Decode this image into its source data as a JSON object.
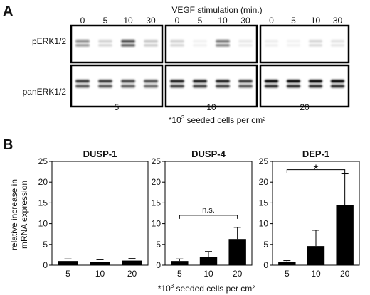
{
  "panel_a": {
    "letter": "A",
    "header": "VEGF stimulation (min.)",
    "time_labels": [
      "0",
      "5",
      "10",
      "30"
    ],
    "row_labels": [
      "pERK1/2",
      "panERK1/2"
    ],
    "density_labels": [
      "5",
      "10",
      "20"
    ],
    "footer_prefix": "*10",
    "footer_sup": "3",
    "footer_suffix": " seeded cells per cm²",
    "blot": {
      "pERK": [
        [
          0.55,
          0.2,
          0.85,
          0.25
        ],
        [
          0.2,
          0.05,
          0.65,
          0.1
        ],
        [
          0.08,
          0.03,
          0.18,
          0.12
        ]
      ],
      "panERK": [
        [
          0.8,
          0.8,
          0.75,
          0.7
        ],
        [
          0.9,
          0.9,
          0.9,
          0.8
        ],
        [
          1.0,
          1.0,
          1.0,
          1.0
        ]
      ]
    }
  },
  "panel_b": {
    "letter": "B",
    "ylabel_line1": "relative increase in",
    "ylabel_line2": "mRNA expression",
    "footer_prefix": "*10",
    "footer_sup": "3",
    "footer_suffix": " seeded cells per cm²"
  },
  "chart_data": [
    {
      "type": "bar",
      "title": "DUSP-1",
      "categories": [
        "5",
        "10",
        "20"
      ],
      "values": [
        1.0,
        0.8,
        1.1
      ],
      "errors": [
        0.5,
        0.5,
        0.5
      ],
      "ylim": [
        0,
        25
      ],
      "yticks": [
        0,
        5,
        10,
        15,
        20,
        25
      ],
      "annotation": null
    },
    {
      "type": "bar",
      "title": "DUSP-4",
      "categories": [
        "5",
        "10",
        "20"
      ],
      "values": [
        1.0,
        2.0,
        6.3
      ],
      "errors": [
        0.5,
        1.3,
        2.8
      ],
      "ylim": [
        0,
        25
      ],
      "yticks": [
        0,
        5,
        10,
        15,
        20,
        25
      ],
      "annotation": {
        "from": 0,
        "to": 2,
        "y": 12,
        "label": "n.s."
      }
    },
    {
      "type": "bar",
      "title": "DEP-1",
      "categories": [
        "5",
        "10",
        "20"
      ],
      "values": [
        0.7,
        4.6,
        14.5
      ],
      "errors": [
        0.4,
        3.8,
        7.5
      ],
      "ylim": [
        0,
        25
      ],
      "yticks": [
        0,
        5,
        10,
        15,
        20,
        25
      ],
      "annotation": {
        "from": 0,
        "to": 2,
        "y": 23,
        "label": "*"
      }
    }
  ]
}
